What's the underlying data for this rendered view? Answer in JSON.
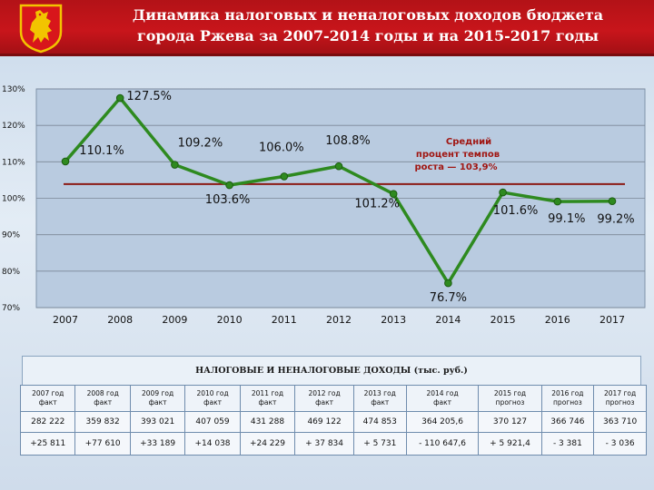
{
  "title": {
    "line1": "Динамика налоговых и неналоговых доходов бюджета",
    "line2": "города Ржева за 2007-2014 годы и на 2015-2017 годы"
  },
  "colors": {
    "header": "#c8151b",
    "line": "#2e8a1f",
    "average_line": "#8b1a14",
    "plot_bg": "#b9cbe0"
  },
  "chart_data": {
    "type": "line",
    "categories": [
      "2007",
      "2008",
      "2009",
      "2010",
      "2011",
      "2012",
      "2013",
      "2014",
      "2015",
      "2016",
      "2017"
    ],
    "values": [
      110.1,
      127.5,
      109.2,
      103.6,
      106.0,
      108.8,
      101.2,
      76.7,
      101.6,
      99.1,
      99.2
    ],
    "labels": [
      "110.1%",
      "127.5%",
      "109.2%",
      "103.6%",
      "106.0%",
      "108.8%",
      "101.2%",
      "76.7%",
      "101.6%",
      "99.1%",
      "99.2%"
    ],
    "average": 103.9,
    "average_label": [
      "Средний",
      "процент темпов",
      "роста — 103,9%"
    ],
    "y_ticks": [
      "130%",
      "120%",
      "110%",
      "100%",
      "90%",
      "80%",
      "70%"
    ],
    "ylim": [
      70,
      130
    ],
    "grid": true,
    "xlabel": "",
    "ylabel": ""
  },
  "table": {
    "title": "НАЛОГОВЫЕ И НЕНАЛОГОВЫЕ ДОХОДЫ (тыс. руб.)",
    "headers": [
      [
        "2007 год",
        "факт"
      ],
      [
        "2008 год",
        "факт"
      ],
      [
        "2009 год",
        "факт"
      ],
      [
        "2010 год",
        "факт"
      ],
      [
        "2011 год",
        "факт"
      ],
      [
        "2012 год",
        "факт"
      ],
      [
        "2013 год",
        "факт"
      ],
      [
        "2014 год",
        "факт"
      ],
      [
        "2015 год",
        "прогноз"
      ],
      [
        "2016 год",
        "прогноз"
      ],
      [
        "2017 год",
        "прогноз"
      ]
    ],
    "values": [
      "282 222",
      "359 832",
      "393 021",
      "407 059",
      "431 288",
      "469 122",
      "474 853",
      "364 205,6",
      "370 127",
      "366 746",
      "363 710"
    ],
    "changes": [
      "+25 811",
      "+77 610",
      "+33 189",
      "+14 038",
      "+24 229",
      "+ 37 834",
      "+ 5 731",
      "- 110 647,6",
      "+ 5 921,4",
      "- 3 381",
      "- 3 036"
    ]
  }
}
